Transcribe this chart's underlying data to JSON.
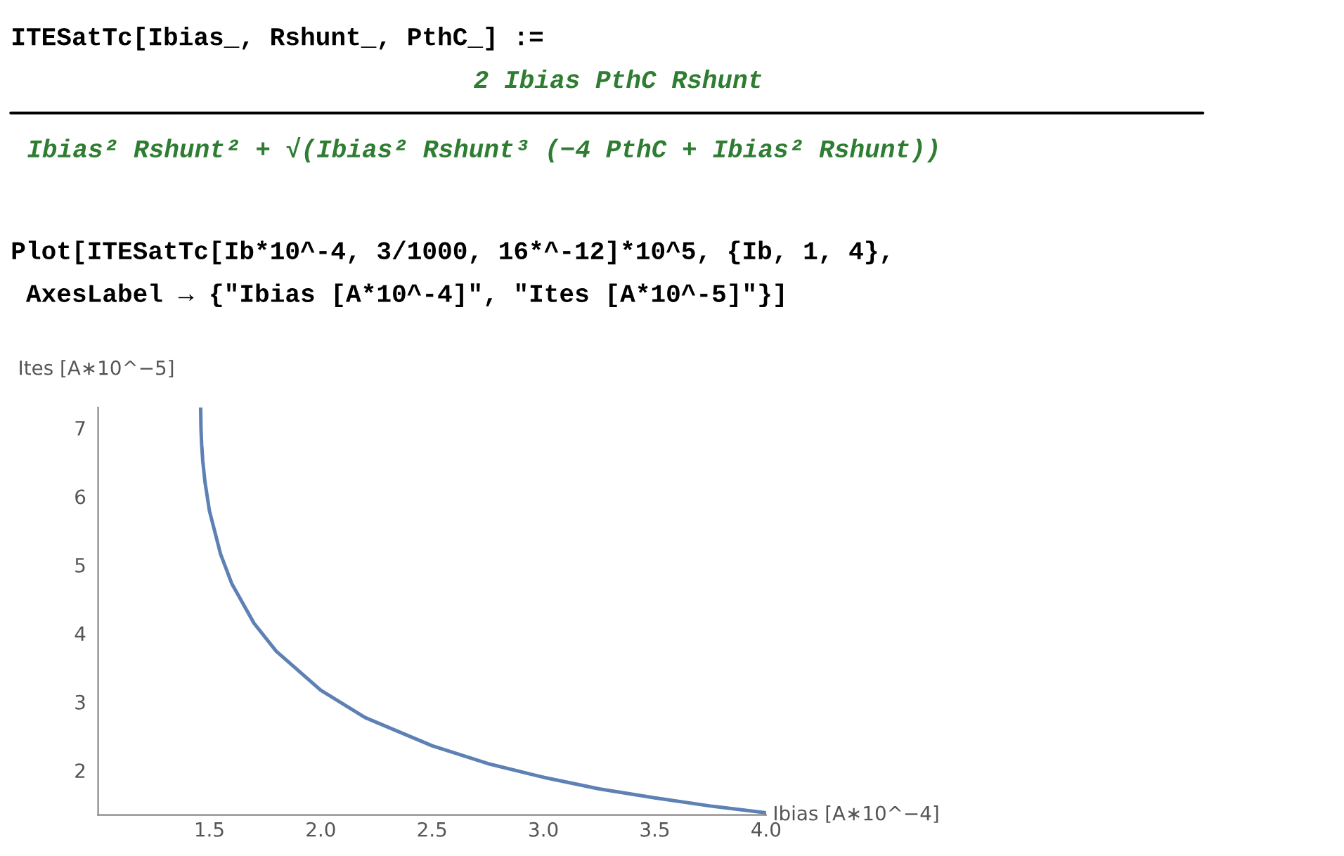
{
  "chart_data": {
    "type": "line",
    "annotations": [
      "ITESatTc[Ibias_, Rshunt_, PthC_] :=",
      "2 Ibias PthC Rshunt",
      "Ibias² Rshunt² + √(Ibias² Rshunt³ (−4 PthC + Ibias² Rshunt))",
      "Plot[ITESatTc[Ib*10^-4, 3/1000, 16*^-12]*10^5, {Ib, 1, 4},",
      " AxesLabel → {\"Ibias [A*10^-4]\", \"Ites [A*10^-5]\"}]"
    ],
    "xlabel": "Ibias [A∗10^−4]",
    "ylabel": "Ites [A∗10^−5]",
    "series": [
      {
        "color": "#5e81b5",
        "x": [
          1.4606,
          1.462,
          1.465,
          1.47,
          1.48,
          1.5,
          1.55,
          1.6,
          1.7,
          1.8,
          2.0,
          2.2,
          2.5,
          2.75,
          3.0,
          3.25,
          3.5,
          3.75,
          4.0
        ],
        "values": [
          7.3,
          6.99,
          6.76,
          6.52,
          6.21,
          5.79,
          5.16,
          4.73,
          4.15,
          3.74,
          3.17,
          2.77,
          2.36,
          2.1,
          1.9,
          1.73,
          1.6,
          1.48,
          1.38
        ]
      }
    ],
    "xlim": [
      1.0,
      4.0
    ],
    "ylim": [
      1.35,
      7.3
    ],
    "xticks": [
      {
        "value": 1.5,
        "label": "1.5"
      },
      {
        "value": 2.0,
        "label": "2.0"
      },
      {
        "value": 2.5,
        "label": "2.5"
      },
      {
        "value": 3.0,
        "label": "3.0"
      },
      {
        "value": 3.5,
        "label": "3.5"
      },
      {
        "value": 4.0,
        "label": "4.0"
      }
    ],
    "yticks": [
      2,
      3,
      4,
      5,
      6,
      7
    ],
    "grid": false,
    "legend": false,
    "marker": "none",
    "line_style": "solid"
  }
}
